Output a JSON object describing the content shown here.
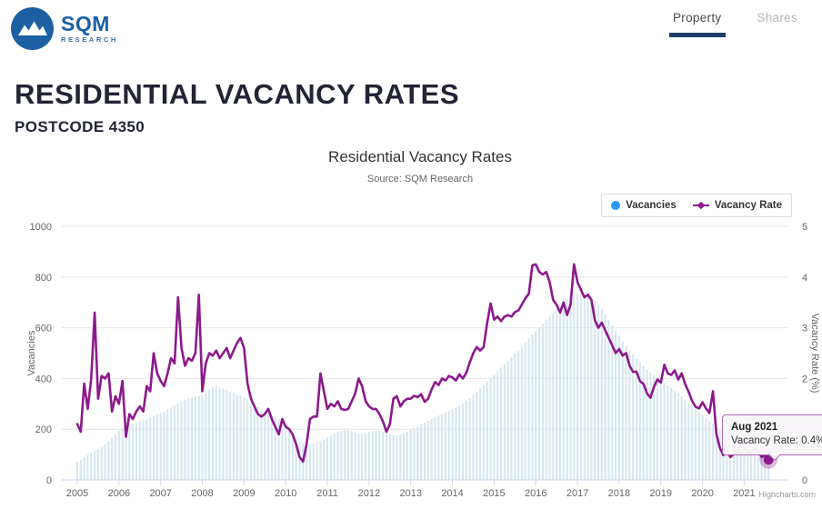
{
  "header": {
    "logo": {
      "sqm": "SQM",
      "research": "RESEARCH"
    },
    "tabs": [
      {
        "label": "Property",
        "active": true
      },
      {
        "label": "Shares",
        "active": false
      }
    ]
  },
  "page": {
    "title": "RESIDENTIAL VACANCY RATES",
    "subtitle": "POSTCODE 4350"
  },
  "chart": {
    "title": "Residential Vacancy Rates",
    "subtitle": "Source: SQM Research",
    "legend": [
      {
        "label": "Vacancies",
        "marker": "blue-circle"
      },
      {
        "label": "Vacancy Rate",
        "marker": "purple-line-diamond"
      }
    ],
    "credits": "Highcharts.com"
  },
  "tooltip": {
    "title": "Aug 2021",
    "text": "Vacancy Rate: 0.4%"
  },
  "colors": {
    "accent-blue": "#2b9af3",
    "line-purple": "#8c1a8c",
    "bar-fill": "#d7e6f0",
    "grid": "#e6e6e6",
    "axis-line": "#ccd6eb",
    "navy": "#203e66",
    "logo-blue": "#1c5fa3",
    "tooltip-border": "#b465b4",
    "text-dark": "#232535",
    "text-gray": "#666666"
  },
  "chart_data": {
    "type": "combo",
    "interval": "monthly",
    "x_start": "2005-01",
    "x_end": "2021-08",
    "x_ticks": [
      2005,
      2006,
      2007,
      2008,
      2009,
      2010,
      2011,
      2012,
      2013,
      2014,
      2015,
      2016,
      2017,
      2018,
      2019,
      2020,
      2021
    ],
    "y_left": {
      "title": "Vacancies",
      "min": 0,
      "max": 1000,
      "ticks": [
        0,
        200,
        400,
        600,
        800,
        1000
      ]
    },
    "y_right": {
      "title": "Vacancy Rate (%)",
      "min": 0,
      "max": 5,
      "ticks": [
        0,
        1,
        2,
        3,
        4,
        5
      ]
    },
    "grid": true,
    "legend_position": "top-right",
    "selected_point": {
      "x": "Aug 2021",
      "series": "Vacancy Rate",
      "value_pct": 0.4
    },
    "series": [
      {
        "name": "Vacancies",
        "type": "column",
        "color": "#2b9af3",
        "bar_fill": "#d7e6f0",
        "values": [
          70,
          80,
          90,
          98,
          106,
          114,
          122,
          130,
          140,
          152,
          165,
          180,
          195,
          205,
          212,
          218,
          222,
          226,
          230,
          235,
          240,
          246,
          252,
          258,
          264,
          270,
          278,
          286,
          294,
          302,
          310,
          316,
          320,
          324,
          328,
          332,
          338,
          346,
          356,
          366,
          370,
          366,
          360,
          354,
          348,
          342,
          336,
          332,
          326,
          318,
          308,
          298,
          288,
          278,
          268,
          258,
          250,
          244,
          240,
          236,
          210,
          192,
          176,
          162,
          152,
          146,
          143,
          142,
          144,
          148,
          154,
          160,
          167,
          174,
          181,
          188,
          193,
          196,
          196,
          193,
          188,
          184,
          182,
          184,
          188,
          192,
          194,
          193,
          190,
          185,
          180,
          177,
          177,
          180,
          185,
          191,
          198,
          205,
          212,
          219,
          226,
          233,
          240,
          247,
          254,
          260,
          266,
          272,
          278,
          285,
          293,
          302,
          312,
          323,
          335,
          348,
          361,
          374,
          387,
          400,
          414,
          428,
          442,
          456,
          470,
          484,
          498,
          512,
          527,
          542,
          557,
          572,
          587,
          602,
          617,
          632,
          647,
          662,
          676,
          690,
          702,
          712,
          720,
          727,
          733,
          736,
          735,
          729,
          719,
          706,
          690,
          672,
          652,
          631,
          610,
          589,
          568,
          548,
          529,
          511,
          494,
          478,
          463,
          449,
          436,
          424,
          413,
          403,
          393,
          383,
          373,
          363,
          352,
          341,
          330,
          318,
          306,
          294,
          282,
          270,
          258,
          246,
          233,
          220,
          207,
          195,
          184,
          174,
          165,
          157,
          150,
          144,
          139,
          134,
          130,
          126,
          123,
          120,
          118,
          116
        ]
      },
      {
        "name": "Vacancy Rate",
        "type": "line",
        "color": "#8c1a8c",
        "unit": "%",
        "values": [
          1.1,
          0.95,
          1.9,
          1.4,
          2.0,
          3.3,
          1.6,
          2.05,
          2.0,
          2.1,
          1.35,
          1.65,
          1.5,
          1.95,
          0.85,
          1.3,
          1.2,
          1.35,
          1.45,
          1.35,
          1.85,
          1.75,
          2.5,
          2.1,
          1.95,
          1.85,
          2.1,
          2.4,
          2.3,
          3.6,
          2.6,
          2.25,
          2.4,
          2.35,
          2.5,
          3.65,
          1.75,
          2.3,
          2.5,
          2.45,
          2.55,
          2.4,
          2.5,
          2.6,
          2.4,
          2.55,
          2.7,
          2.8,
          2.6,
          1.9,
          1.6,
          1.45,
          1.3,
          1.25,
          1.3,
          1.4,
          1.2,
          1.05,
          0.9,
          1.2,
          1.05,
          1.0,
          0.9,
          0.7,
          0.45,
          0.36,
          0.7,
          1.2,
          1.25,
          1.25,
          2.1,
          1.75,
          1.4,
          1.5,
          1.45,
          1.55,
          1.4,
          1.38,
          1.4,
          1.55,
          1.7,
          2.0,
          1.85,
          1.55,
          1.45,
          1.4,
          1.4,
          1.3,
          1.15,
          0.95,
          1.1,
          1.6,
          1.65,
          1.45,
          1.55,
          1.6,
          1.6,
          1.66,
          1.63,
          1.69,
          1.54,
          1.6,
          1.78,
          1.93,
          1.87,
          2.0,
          1.96,
          2.05,
          2.02,
          1.96,
          2.08,
          2.0,
          2.11,
          2.32,
          2.5,
          2.62,
          2.55,
          2.62,
          3.1,
          3.48,
          3.16,
          3.22,
          3.13,
          3.22,
          3.25,
          3.22,
          3.31,
          3.34,
          3.46,
          3.58,
          3.67,
          4.23,
          4.25,
          4.1,
          4.05,
          4.1,
          3.9,
          3.55,
          3.45,
          3.3,
          3.5,
          3.25,
          3.45,
          4.25,
          3.9,
          3.75,
          3.6,
          3.65,
          3.55,
          3.15,
          3.0,
          3.1,
          2.95,
          2.8,
          2.65,
          2.5,
          2.58,
          2.45,
          2.5,
          2.25,
          2.13,
          2.13,
          1.95,
          1.89,
          1.71,
          1.62,
          1.83,
          1.98,
          1.92,
          2.27,
          2.1,
          2.07,
          2.16,
          1.98,
          2.1,
          1.89,
          1.74,
          1.56,
          1.44,
          1.41,
          1.53,
          1.41,
          1.32,
          1.75,
          0.9,
          0.63,
          0.49,
          0.57,
          0.45,
          0.51,
          0.51,
          0.75,
          0.63,
          0.54,
          0.54,
          0.63,
          0.57,
          0.45,
          0.49,
          0.4
        ]
      }
    ]
  }
}
